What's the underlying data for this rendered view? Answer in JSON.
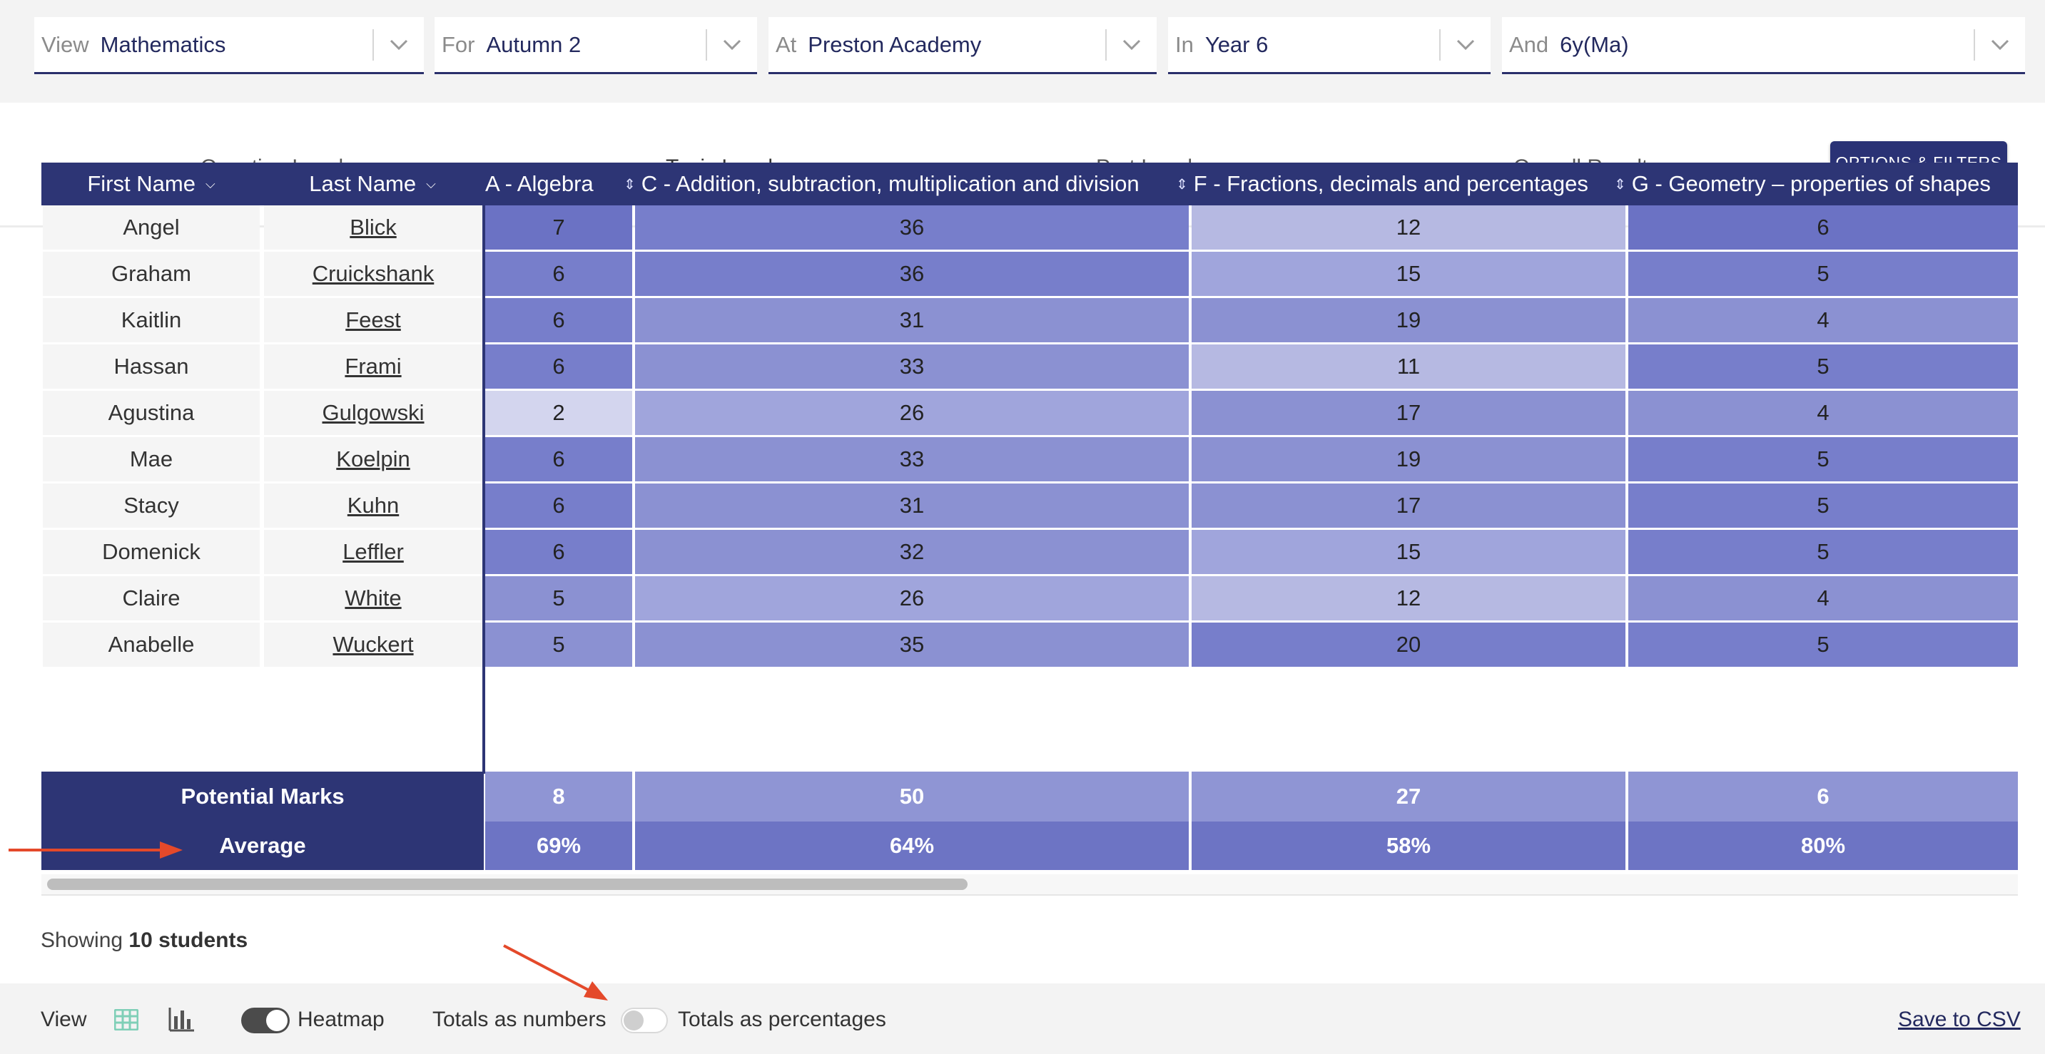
{
  "filters": [
    {
      "prefix": "View",
      "value": "Mathematics"
    },
    {
      "prefix": "For",
      "value": "Autumn 2"
    },
    {
      "prefix": "At",
      "value": "Preston Academy"
    },
    {
      "prefix": "In",
      "value": "Year 6"
    },
    {
      "prefix": "And",
      "value": "6y(Ma)"
    }
  ],
  "tabs": [
    {
      "label": "Question Level"
    },
    {
      "label": "Topic Level"
    },
    {
      "label": "Part Level"
    },
    {
      "label": "Overall Results"
    }
  ],
  "options_button": "OPTIONS & FILTERS",
  "table": {
    "first_name_header": "First Name",
    "last_name_header": "Last Name",
    "topics": [
      "A - Algebra",
      "C - Addition, subtraction, multiplication and division",
      "F - Fractions, decimals and percentages",
      "G - Geometry – properties of shapes"
    ],
    "rows": [
      {
        "first": "Angel",
        "last": "Blick",
        "scores": [
          7,
          36,
          12,
          6
        ]
      },
      {
        "first": "Graham",
        "last": "Cruickshank",
        "scores": [
          6,
          36,
          15,
          5
        ]
      },
      {
        "first": "Kaitlin",
        "last": "Feest",
        "scores": [
          6,
          31,
          19,
          4
        ]
      },
      {
        "first": "Hassan",
        "last": "Frami",
        "scores": [
          6,
          33,
          11,
          5
        ]
      },
      {
        "first": "Agustina",
        "last": "Gulgowski",
        "scores": [
          2,
          26,
          17,
          4
        ]
      },
      {
        "first": "Mae",
        "last": "Koelpin",
        "scores": [
          6,
          33,
          19,
          5
        ]
      },
      {
        "first": "Stacy",
        "last": "Kuhn",
        "scores": [
          6,
          31,
          17,
          5
        ]
      },
      {
        "first": "Domenick",
        "last": "Leffler",
        "scores": [
          6,
          32,
          15,
          5
        ]
      },
      {
        "first": "Claire",
        "last": "White",
        "scores": [
          5,
          26,
          12,
          4
        ]
      },
      {
        "first": "Anabelle",
        "last": "Wuckert",
        "scores": [
          5,
          35,
          20,
          5
        ]
      }
    ],
    "potential_label": "Potential Marks",
    "potential": [
      8,
      50,
      27,
      6
    ],
    "average_label": "Average",
    "average": [
      "69%",
      "64%",
      "58%",
      "80%"
    ]
  },
  "showing": {
    "prefix": "Showing",
    "count": "10 students"
  },
  "toolbar": {
    "view_label": "View",
    "heatmap_label": "Heatmap",
    "totals_numbers": "Totals as numbers",
    "totals_percentages": "Totals as percentages",
    "save_csv": "Save to CSV",
    "heatmap_on": true,
    "percentages_on": false
  },
  "colors": {
    "header": "#2d3575",
    "accent_tab": "#9ed6c8",
    "view_icon": "#7fcfb7",
    "annotation_arrow": "#e4492a"
  },
  "icons": [
    "chevron-down-icon",
    "sort-icon",
    "table-view-icon",
    "bar-chart-icon",
    "arrow-annotation-icon"
  ]
}
